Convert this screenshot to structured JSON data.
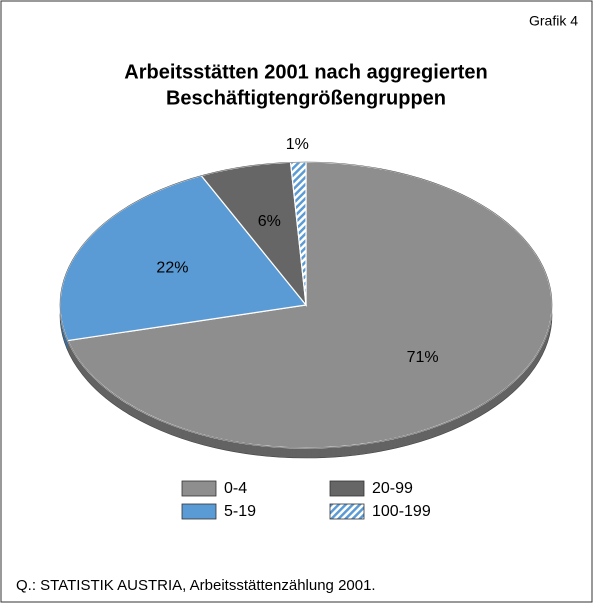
{
  "chart_data": {
    "type": "pie",
    "label": "Grafik 4",
    "title": [
      "Arbeitsstätten 2001 nach aggregierten",
      "Beschäftigtengrößengruppen"
    ],
    "categories": [
      "0-4",
      "5-19",
      "20-99",
      "100-199"
    ],
    "values": [
      71,
      22,
      6,
      1
    ],
    "value_labels": [
      "71%",
      "22%",
      "6%",
      "1%"
    ],
    "colors": [
      "#8e8e8e",
      "#5b9bd5",
      "#666666",
      "#5b9bd5"
    ],
    "hatched": [
      false,
      false,
      false,
      true
    ],
    "source": "Q.: STATISTIK AUSTRIA, Arbeitsstättenzählung 2001."
  }
}
